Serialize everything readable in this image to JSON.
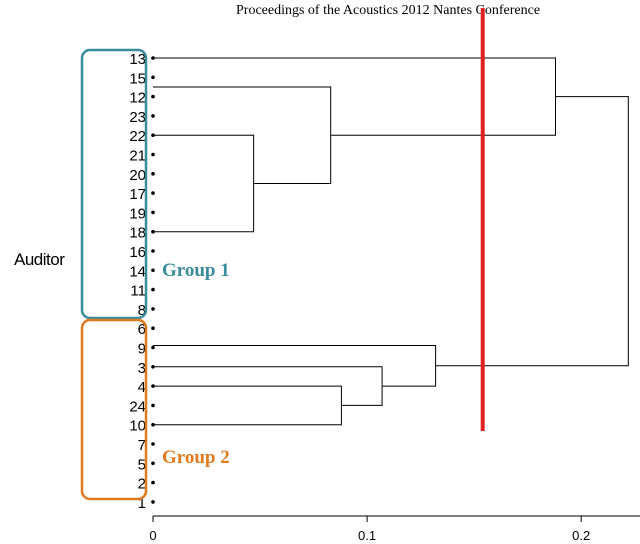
{
  "header": {
    "text": "Proceedings of the Acoustics 2012 Nantes Conference"
  },
  "colors": {
    "group1": "#3a8c9c",
    "group2": "#e07a1f",
    "cutline": "#e32020",
    "ink": "#000000"
  },
  "chart_data": {
    "type": "dendrogram",
    "orientation": "horizontal",
    "ylabel": "Auditor",
    "xlabel": "",
    "xlim": [
      0,
      0.22
    ],
    "xticks": [
      0,
      0.1,
      0.2
    ],
    "xtick_labels": [
      "0",
      "0.1",
      "0.2"
    ],
    "leaves": [
      "13",
      "15",
      "12",
      "23",
      "22",
      "21",
      "20",
      "17",
      "19",
      "18",
      "16",
      "14",
      "11",
      "8",
      "6",
      "9",
      "3",
      "4",
      "24",
      "10",
      "7",
      "5",
      "2",
      "1"
    ],
    "merges": [
      {
        "members": [
          "22",
          "21",
          "20",
          "17",
          "19",
          "18",
          "16",
          "14",
          "11",
          "8"
        ],
        "height": 0.047
      },
      {
        "members": [
          "15",
          "12",
          "23",
          "22",
          "21",
          "20",
          "17",
          "19",
          "18",
          "16",
          "14",
          "11",
          "8"
        ],
        "height": 0.083
      },
      {
        "members": [
          "13",
          "15",
          "12",
          "23",
          "22",
          "21",
          "20",
          "17",
          "19",
          "18",
          "16",
          "14",
          "11",
          "8"
        ],
        "height": 0.188
      },
      {
        "members": [
          "4",
          "24",
          "10",
          "7",
          "5",
          "2",
          "1"
        ],
        "height": 0.088
      },
      {
        "members": [
          "3",
          "4",
          "24",
          "10",
          "7",
          "5",
          "2",
          "1"
        ],
        "height": 0.107
      },
      {
        "members": [
          "9",
          "3",
          "4",
          "24",
          "10",
          "7",
          "5",
          "2",
          "1"
        ],
        "height": 0.132
      },
      {
        "members": [
          "6",
          "9",
          "3",
          "4",
          "24",
          "10",
          "7",
          "5",
          "2",
          "1"
        ],
        "height": 0.132
      },
      {
        "members": [
          "all"
        ],
        "height": 0.222
      }
    ],
    "cut_height": 0.154,
    "groups": [
      {
        "label": "Group 1",
        "members": [
          "13",
          "15",
          "12",
          "23",
          "22",
          "21",
          "20",
          "17",
          "19",
          "18",
          "16",
          "14",
          "11",
          "8"
        ]
      },
      {
        "label": "Group 2",
        "members": [
          "6",
          "9",
          "3",
          "4",
          "24",
          "10",
          "7",
          "5",
          "2",
          "1"
        ]
      }
    ]
  }
}
